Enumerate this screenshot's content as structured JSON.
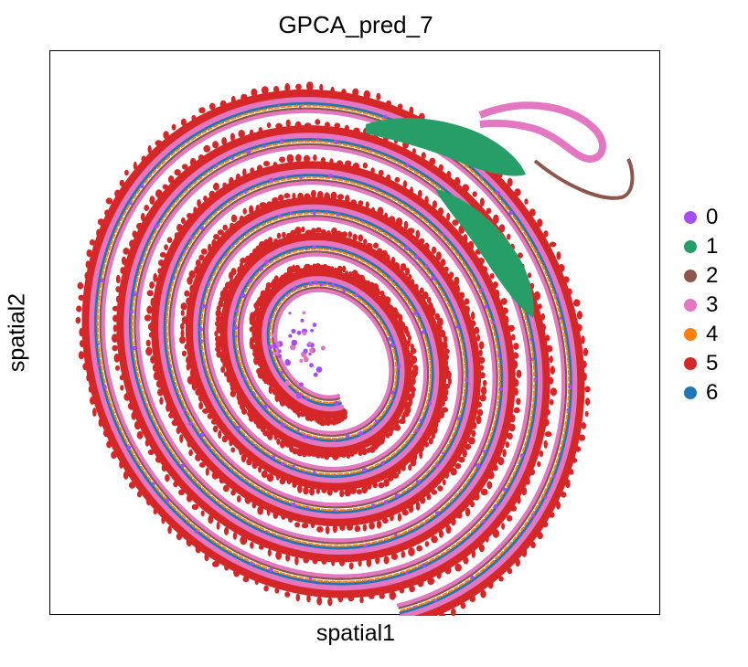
{
  "chart_data": {
    "type": "scatter",
    "title": "GPCA_pred_7",
    "xlabel": "spatial1",
    "ylabel": "spatial2",
    "grid": false,
    "legend_placement": "right",
    "xlim": [
      0,
      1
    ],
    "ylim": [
      0,
      1
    ],
    "series": [
      {
        "name": "0",
        "color": "#a54ef4"
      },
      {
        "name": "1",
        "color": "#279e68"
      },
      {
        "name": "2",
        "color": "#8c564b"
      },
      {
        "name": "3",
        "color": "#e377c2"
      },
      {
        "name": "4",
        "color": "#ff7f0e"
      },
      {
        "name": "5",
        "color": "#d62728"
      },
      {
        "name": "6",
        "color": "#1f77b4"
      }
    ]
  }
}
